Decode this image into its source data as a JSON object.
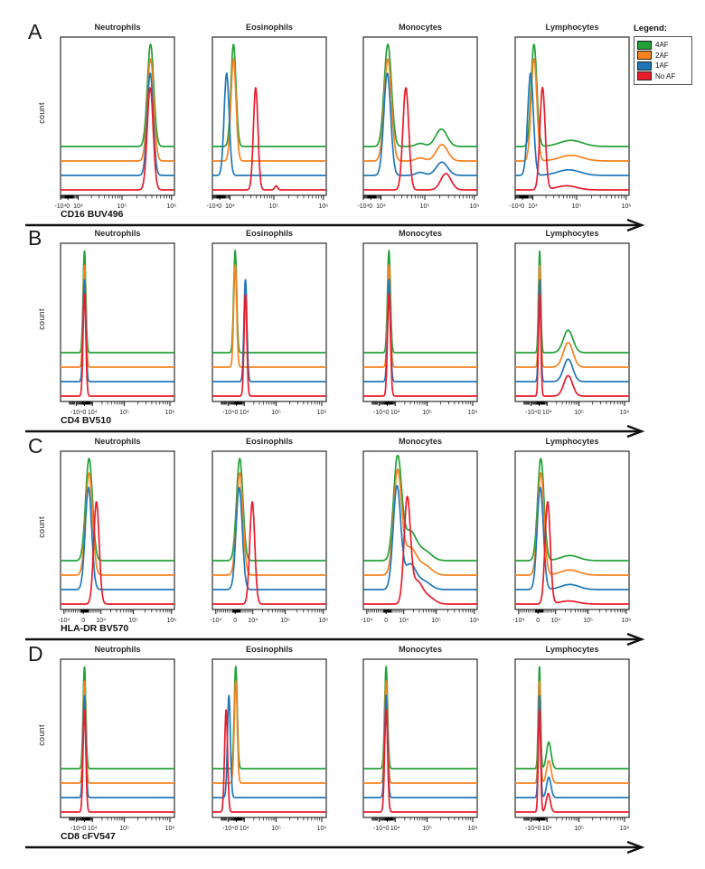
{
  "legend": {
    "title": "Legend:",
    "entries": [
      {
        "label": "4AF",
        "color": "#23a038"
      },
      {
        "label": "2AF",
        "color": "#f6821f"
      },
      {
        "label": "1AF",
        "color": "#2077b8"
      },
      {
        "label": "No AF",
        "color": "#e91c2c"
      }
    ]
  },
  "chart_data": {
    "type": "line",
    "description": "Flow cytometry histogram overlays; 4 autofluorescence conditions per panel, vertically offset traces; x axes are biexponential (symlog) fluorescence intensity scales; y axis is event count.",
    "ylabel": "count",
    "columns": [
      "Neutrophils",
      "Eosinophils",
      "Monocytes",
      "Lymphocytes"
    ],
    "series_labels": [
      "4AF",
      "2AF",
      "1AF",
      "No AF"
    ],
    "series_colors": {
      "4AF": "#23a038",
      "2AF": "#f6821f",
      "1AF": "#2077b8",
      "No AF": "#e91c2c"
    },
    "peak_format": "[center_fraction_of_axis, sigma_fraction, amplitude_fraction]",
    "rows": [
      {
        "letter": "A",
        "xlabel": "CD16 BUV496",
        "ticks": [
          [
            "-10⁴",
            0.0
          ],
          [
            "0",
            0.065
          ],
          [
            "10⁴",
            0.155
          ],
          [
            "10⁵",
            0.54
          ],
          [
            "10⁶",
            0.975
          ]
        ],
        "panels": [
          {
            "title": "Neutrophils",
            "peaks": {
              "4AF": [
                [
                  0.79,
                  0.028,
                  1.0
                ]
              ],
              "2AF": [
                [
                  0.79,
                  0.028,
                  1.0
                ]
              ],
              "1AF": [
                [
                  0.787,
                  0.026,
                  1.0
                ]
              ],
              "No AF": [
                [
                  0.787,
                  0.026,
                  1.0
                ]
              ]
            }
          },
          {
            "title": "Eosinophils",
            "peaks": {
              "4AF": [
                [
                  0.185,
                  0.022,
                  1.0
                ]
              ],
              "2AF": [
                [
                  0.185,
                  0.022,
                  1.0
                ]
              ],
              "1AF": [
                [
                  0.125,
                  0.022,
                  1.0
                ]
              ],
              "No AF": [
                [
                  0.38,
                  0.02,
                  1.0
                ],
                [
                  0.56,
                  0.013,
                  0.04
                ]
              ]
            }
          },
          {
            "title": "Monocytes",
            "peaks": {
              "4AF": [
                [
                  0.215,
                  0.032,
                  1.0
                ],
                [
                  0.685,
                  0.05,
                  0.17
                ],
                [
                  0.5,
                  0.04,
                  0.03
                ]
              ],
              "2AF": [
                [
                  0.215,
                  0.032,
                  1.0
                ],
                [
                  0.69,
                  0.05,
                  0.16
                ],
                [
                  0.5,
                  0.04,
                  0.03
                ]
              ],
              "1AF": [
                [
                  0.21,
                  0.03,
                  1.0
                ],
                [
                  0.69,
                  0.05,
                  0.13
                ],
                [
                  0.5,
                  0.04,
                  0.03
                ]
              ],
              "No AF": [
                [
                  0.373,
                  0.026,
                  1.0
                ],
                [
                  0.725,
                  0.045,
                  0.16
                ]
              ]
            }
          },
          {
            "title": "Lymphocytes",
            "peaks": {
              "4AF": [
                [
                  0.165,
                  0.025,
                  1.0
                ],
                [
                  0.49,
                  0.1,
                  0.06
                ]
              ],
              "2AF": [
                [
                  0.165,
                  0.025,
                  1.0
                ],
                [
                  0.49,
                  0.1,
                  0.055
                ]
              ],
              "1AF": [
                [
                  0.135,
                  0.025,
                  1.0
                ],
                [
                  0.47,
                  0.1,
                  0.055
                ]
              ],
              "No AF": [
                [
                  0.24,
                  0.023,
                  1.0
                ],
                [
                  0.45,
                  0.09,
                  0.04
                ]
              ]
            }
          }
        ]
      },
      {
        "letter": "B",
        "xlabel": "CD4 BV510",
        "ticks": [
          [
            "-10⁴",
            0.14
          ],
          [
            "0",
            0.21
          ],
          [
            "10⁴",
            0.28
          ],
          [
            "10⁵",
            0.56
          ],
          [
            "10⁶",
            0.96
          ]
        ],
        "panels": [
          {
            "title": "Neutrophils",
            "peaks": {
              "4AF": [
                [
                  0.21,
                  0.012,
                  1.0
                ]
              ],
              "2AF": [
                [
                  0.21,
                  0.012,
                  1.0
                ]
              ],
              "1AF": [
                [
                  0.21,
                  0.012,
                  1.0
                ]
              ],
              "No AF": [
                [
                  0.21,
                  0.012,
                  1.0
                ]
              ]
            }
          },
          {
            "title": "Eosinophils",
            "peaks": {
              "4AF": [
                [
                  0.2,
                  0.013,
                  1.0
                ]
              ],
              "2AF": [
                [
                  0.2,
                  0.013,
                  1.0
                ]
              ],
              "1AF": [
                [
                  0.29,
                  0.013,
                  1.0
                ]
              ],
              "No AF": [
                [
                  0.29,
                  0.012,
                  1.0
                ]
              ]
            }
          },
          {
            "title": "Monocytes",
            "peaks": {
              "4AF": [
                [
                  0.225,
                  0.013,
                  1.0
                ]
              ],
              "2AF": [
                [
                  0.225,
                  0.013,
                  1.0
                ]
              ],
              "1AF": [
                [
                  0.225,
                  0.013,
                  1.0
                ]
              ],
              "No AF": [
                [
                  0.225,
                  0.013,
                  1.0
                ]
              ]
            }
          },
          {
            "title": "Lymphocytes",
            "peaks": {
              "4AF": [
                [
                  0.215,
                  0.01,
                  1.0
                ],
                [
                  0.465,
                  0.042,
                  0.22
                ]
              ],
              "2AF": [
                [
                  0.215,
                  0.01,
                  1.0
                ],
                [
                  0.465,
                  0.042,
                  0.24
                ]
              ],
              "1AF": [
                [
                  0.215,
                  0.01,
                  1.0
                ],
                [
                  0.465,
                  0.04,
                  0.22
                ]
              ],
              "No AF": [
                [
                  0.215,
                  0.01,
                  1.0
                ],
                [
                  0.465,
                  0.038,
                  0.2
                ]
              ]
            }
          }
        ]
      },
      {
        "letter": "C",
        "xlabel": "HLA-DR BV570",
        "ticks": [
          [
            "-10⁴",
            0.03
          ],
          [
            "0",
            0.2
          ],
          [
            "10⁴",
            0.355
          ],
          [
            "10⁵",
            0.64
          ],
          [
            "10⁶",
            0.975
          ]
        ],
        "panels": [
          {
            "title": "Neutrophils",
            "peaks": {
              "4AF": [
                [
                  0.25,
                  0.03,
                  1.0
                ]
              ],
              "2AF": [
                [
                  0.25,
                  0.03,
                  1.0
                ]
              ],
              "1AF": [
                [
                  0.245,
                  0.028,
                  1.0
                ]
              ],
              "No AF": [
                [
                  0.315,
                  0.024,
                  1.0
                ]
              ]
            }
          },
          {
            "title": "Eosinophils",
            "peaks": {
              "4AF": [
                [
                  0.24,
                  0.028,
                  1.0
                ]
              ],
              "2AF": [
                [
                  0.24,
                  0.028,
                  1.0
                ]
              ],
              "1AF": [
                [
                  0.235,
                  0.027,
                  1.0
                ]
              ],
              "No AF": [
                [
                  0.35,
                  0.022,
                  1.0
                ]
              ]
            }
          },
          {
            "title": "Monocytes",
            "peaks": {
              "4AF": [
                [
                  0.3,
                  0.035,
                  1.0
                ],
                [
                  0.41,
                  0.055,
                  0.28
                ],
                [
                  0.54,
                  0.06,
                  0.09
                ]
              ],
              "2AF": [
                [
                  0.3,
                  0.035,
                  1.0
                ],
                [
                  0.41,
                  0.055,
                  0.26
                ],
                [
                  0.54,
                  0.06,
                  0.09
                ]
              ],
              "1AF": [
                [
                  0.295,
                  0.033,
                  1.0
                ],
                [
                  0.41,
                  0.05,
                  0.24
                ],
                [
                  0.53,
                  0.06,
                  0.08
                ]
              ],
              "No AF": [
                [
                  0.385,
                  0.028,
                  1.0
                ],
                [
                  0.47,
                  0.05,
                  0.22
                ],
                [
                  0.58,
                  0.05,
                  0.06
                ]
              ]
            }
          },
          {
            "title": "Lymphocytes",
            "peaks": {
              "4AF": [
                [
                  0.225,
                  0.028,
                  1.0
                ],
                [
                  0.48,
                  0.08,
                  0.05
                ]
              ],
              "2AF": [
                [
                  0.225,
                  0.028,
                  1.0
                ],
                [
                  0.48,
                  0.08,
                  0.05
                ]
              ],
              "1AF": [
                [
                  0.22,
                  0.027,
                  1.0
                ],
                [
                  0.48,
                  0.08,
                  0.05
                ]
              ],
              "No AF": [
                [
                  0.285,
                  0.023,
                  1.0
                ],
                [
                  0.47,
                  0.08,
                  0.03
                ]
              ]
            }
          }
        ]
      },
      {
        "letter": "D",
        "xlabel": "CD8 cFV547",
        "ticks": [
          [
            "-10⁴",
            0.14
          ],
          [
            "0",
            0.21
          ],
          [
            "10⁴",
            0.28
          ],
          [
            "10⁵",
            0.56
          ],
          [
            "10⁶",
            0.96
          ]
        ],
        "panels": [
          {
            "title": "Neutrophils",
            "peaks": {
              "4AF": [
                [
                  0.21,
                  0.012,
                  1.0
                ]
              ],
              "2AF": [
                [
                  0.21,
                  0.012,
                  1.0
                ]
              ],
              "1AF": [
                [
                  0.21,
                  0.012,
                  1.0
                ]
              ],
              "No AF": [
                [
                  0.21,
                  0.012,
                  1.0
                ]
              ]
            }
          },
          {
            "title": "Eosinophils",
            "peaks": {
              "4AF": [
                [
                  0.205,
                  0.013,
                  1.0
                ]
              ],
              "2AF": [
                [
                  0.205,
                  0.013,
                  1.0
                ]
              ],
              "1AF": [
                [
                  0.145,
                  0.013,
                  1.0
                ]
              ],
              "No AF": [
                [
                  0.12,
                  0.013,
                  1.0
                ]
              ]
            }
          },
          {
            "title": "Monocytes",
            "peaks": {
              "4AF": [
                [
                  0.2,
                  0.013,
                  1.0
                ]
              ],
              "2AF": [
                [
                  0.2,
                  0.013,
                  1.0
                ]
              ],
              "1AF": [
                [
                  0.2,
                  0.013,
                  1.0
                ]
              ],
              "No AF": [
                [
                  0.2,
                  0.013,
                  1.0
                ]
              ]
            }
          },
          {
            "title": "Lymphocytes",
            "peaks": {
              "4AF": [
                [
                  0.213,
                  0.01,
                  1.0
                ],
                [
                  0.295,
                  0.02,
                  0.26
                ]
              ],
              "2AF": [
                [
                  0.213,
                  0.01,
                  1.0
                ],
                [
                  0.295,
                  0.02,
                  0.22
                ]
              ],
              "1AF": [
                [
                  0.213,
                  0.01,
                  1.0
                ],
                [
                  0.295,
                  0.019,
                  0.2
                ]
              ],
              "No AF": [
                [
                  0.213,
                  0.01,
                  1.0
                ],
                [
                  0.29,
                  0.018,
                  0.18
                ]
              ]
            }
          }
        ]
      }
    ]
  }
}
